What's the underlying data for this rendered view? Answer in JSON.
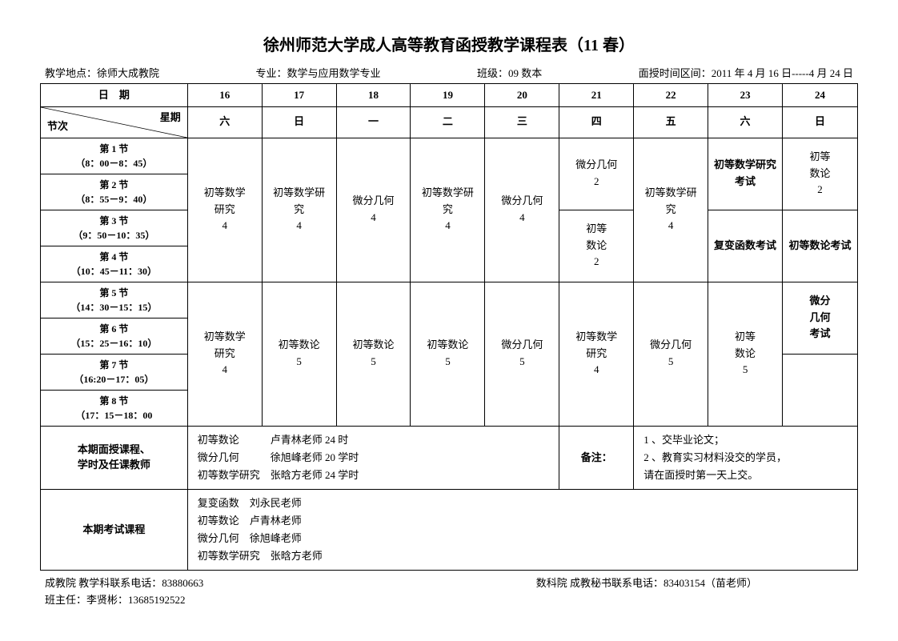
{
  "title": "徐州师范大学成人高等教育函授教学课程表（11 春）",
  "meta": {
    "location": "教学地点：徐师大成教院",
    "major": "专业：数学与应用数学专业",
    "class": "班级：09 数本",
    "time": "面授时间区间：2011 年 4 月 16 日-----4 月 24 日"
  },
  "headers": {
    "date": "日　期",
    "weekday_diag_top": "星期",
    "weekday_diag_bottom": "节次"
  },
  "dates": [
    "16",
    "17",
    "18",
    "19",
    "20",
    "21",
    "22",
    "23",
    "24"
  ],
  "weekdays": [
    "六",
    "日",
    "一",
    "二",
    "三",
    "四",
    "五",
    "六",
    "日"
  ],
  "periods": [
    "第 1 节\n（8：00－8：45）",
    "第 2 节\n（8：55－9：40）",
    "第 3 节\n（9：50－10：35）",
    "第 4 节\n（10：45－11：30）",
    "第 5 节\n（14：30－15：15）",
    "第 6 节\n（15：25－16：10）",
    "第 7 节\n（16:20－17：05）",
    "第 8 节\n（17：15－18：00"
  ],
  "cells": {
    "am": {
      "c0": "初等数学\n研究\n4",
      "c1": "初等数学研\n究\n4",
      "c2": "微分几何\n4",
      "c3": "初等数学研\n究\n4",
      "c4": "微分几何\n4",
      "c5a": "微分几何\n2",
      "c5b": "初等\n数论\n2",
      "c6": "初等数学研\n究\n4",
      "c7a": "初等数学研究\n考试",
      "c7b": "复变函数考试",
      "c8a": "初等\n数论\n2",
      "c8b": "初等数论考试"
    },
    "pm": {
      "c0": "初等数学\n研究\n4",
      "c1": "初等数论\n5",
      "c2": "初等数论\n5",
      "c3": "初等数论\n5",
      "c4": "微分几何\n5",
      "c5": "初等数学\n研究\n4",
      "c6": "微分几何\n5",
      "c7": "初等\n数论\n5",
      "c8a": "微分\n几何\n考试",
      "c8b": ""
    }
  },
  "info1": {
    "label": "本期面授课程、\n学时及任课教师",
    "text": "初等数论　　　卢青林老师 24 时\n微分几何　　　徐旭峰老师 20 学时\n初等数学研究　张晗方老师 24 学时",
    "note_label": "备注：",
    "note_text": "1 、交毕业论文；\n2 、教育实习材料没交的学员，\n请在面授时第一天上交。"
  },
  "info2": {
    "label": "本期考试课程",
    "text": "复变函数　刘永民老师\n初等数论　卢青林老师\n微分几何　徐旭峰老师\n初等数学研究　张晗方老师"
  },
  "footer": {
    "left1": "成教院 教学科联系电话：83880663",
    "right1": "数科院 成教秘书联系电话：83403154（苗老师）",
    "left2": "班主任：李贤彬：13685192522"
  },
  "style": {
    "colwidths": [
      "18%",
      "9.1%",
      "9.1%",
      "9.1%",
      "9.1%",
      "9.1%",
      "9.1%",
      "9.1%",
      "9.1%",
      "9.2%"
    ],
    "title_fontsize": 20,
    "body_fontsize": 13,
    "border_color": "#000000",
    "background": "#ffffff",
    "font_family": "SimSun"
  }
}
